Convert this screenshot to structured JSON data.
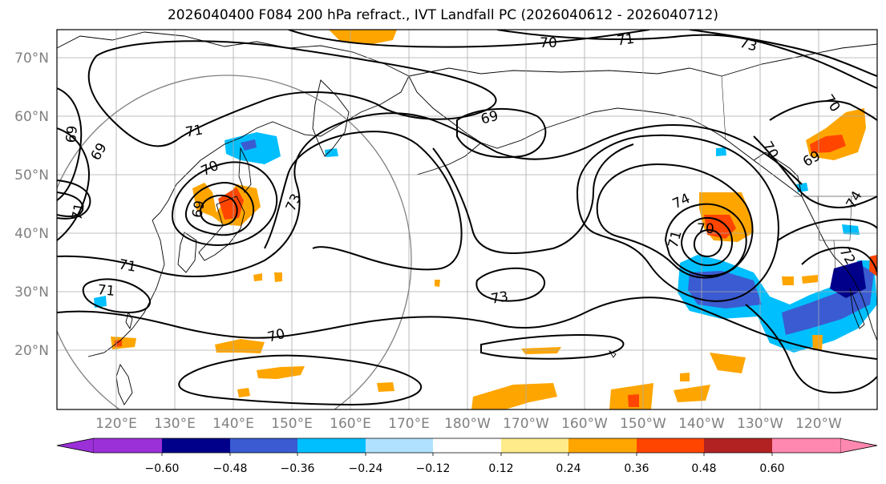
{
  "title": "2026040400 F084 200 hPa refract., IVT Landfall PC (2026040612 - 2026040712)",
  "lat_labels": [
    "70°N",
    "60°N",
    "50°N",
    "40°N",
    "30°N",
    "20°N"
  ],
  "lon_labels": [
    "120°E",
    "130°E",
    "140°E",
    "150°E",
    "160°E",
    "170°E",
    "180°W",
    "170°W",
    "160°W",
    "150°W",
    "140°W",
    "130°W",
    "120°W"
  ],
  "contour_labels": [
    "70",
    "71",
    "73",
    "69",
    "71",
    "70",
    "69",
    "73",
    "71",
    "69",
    "70",
    "74",
    "70",
    "71",
    "73",
    "71",
    "71",
    "70",
    "69",
    "69",
    "70",
    "74",
    "72"
  ],
  "colorbar": {
    "ticks": [
      "−0.60",
      "−0.48",
      "−0.36",
      "−0.24",
      "−0.12",
      "0.12",
      "0.24",
      "0.36",
      "0.48",
      "0.60"
    ],
    "colors": [
      "#9b30d9",
      "#00008b",
      "#3a5bd1",
      "#00bfff",
      "#b0e2ff",
      "#ffffff",
      "#ffeb8a",
      "#ffa500",
      "#ff4500",
      "#b22222",
      "#ff88b0"
    ]
  }
}
